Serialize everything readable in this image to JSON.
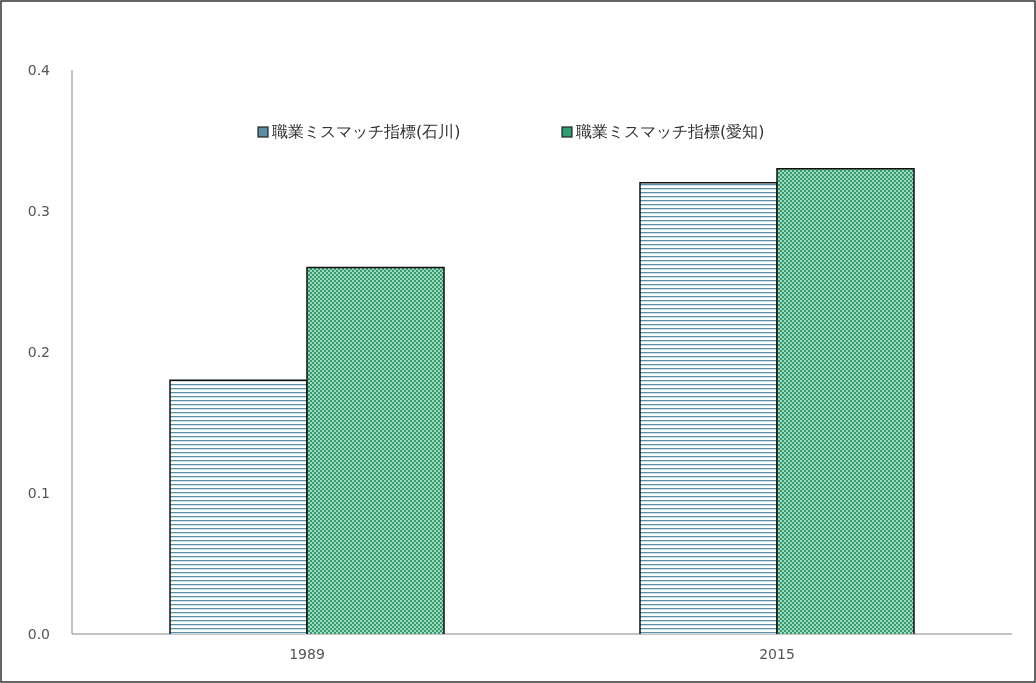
{
  "chart_data": {
    "type": "bar",
    "categories": [
      "1989",
      "2015"
    ],
    "series": [
      {
        "name": "職業ミスマッチ指標(石川)",
        "color": "#5b8fa8",
        "values": [
          0.18,
          0.32
        ]
      },
      {
        "name": "職業ミスマッチ指標(愛知)",
        "color": "#2e9e6e",
        "values": [
          0.26,
          0.33
        ]
      }
    ],
    "ylim": [
      0,
      0.4
    ],
    "yticks": [
      {
        "value": 0,
        "label": "0.0"
      },
      {
        "value": 0.1,
        "label": "0.1"
      },
      {
        "value": 0.2,
        "label": "0.2"
      },
      {
        "value": 0.3,
        "label": "0.3"
      },
      {
        "value": 0.4,
        "label": "0.4"
      }
    ],
    "grid": false,
    "legend": "top"
  }
}
